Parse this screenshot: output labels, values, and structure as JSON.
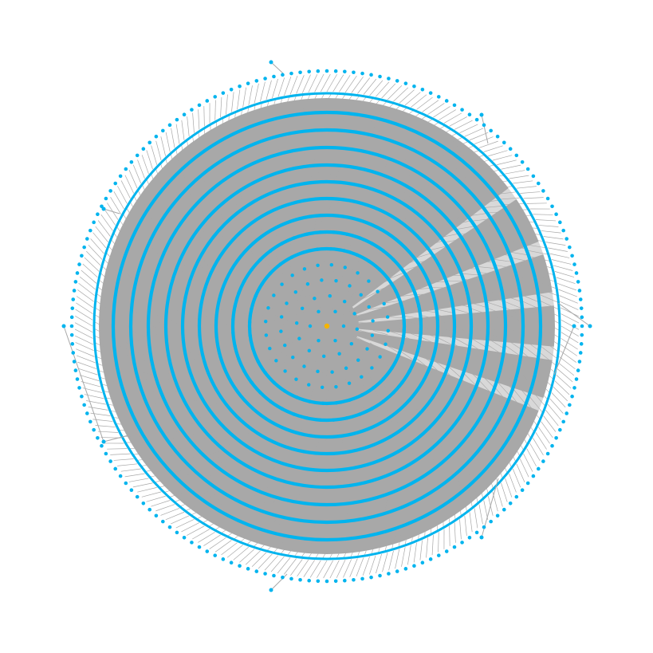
{
  "graph": {
    "layout": "concentric",
    "root_color": "#f5b400",
    "node_color": "#00b4ee",
    "edge_color": "#a8a8a8",
    "background": "#ffffff",
    "ring_count": 14,
    "visible_text": []
  }
}
